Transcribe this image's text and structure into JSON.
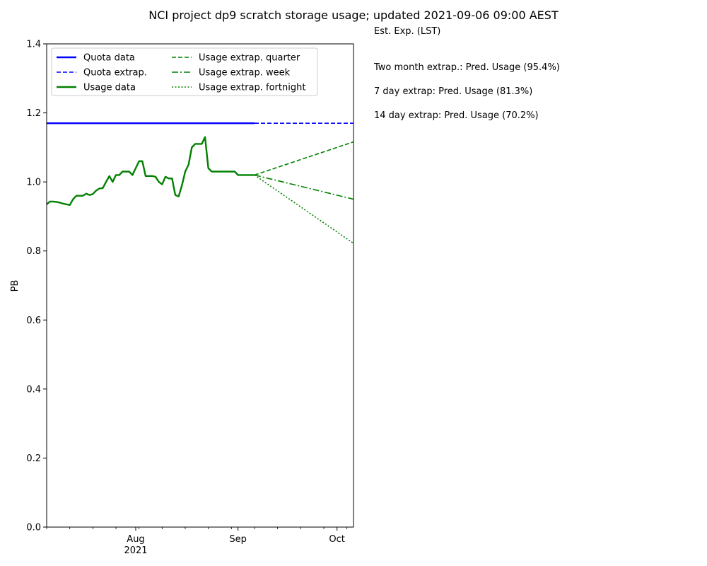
{
  "chart_data": {
    "type": "line",
    "title": "NCI project dp9 scratch storage usage; updated 2021-09-06 09:00 AEST",
    "xlabel": "",
    "ylabel": "PB",
    "xlim": [
      "2021-07-05",
      "2021-10-06"
    ],
    "ylim": [
      0.0,
      1.4
    ],
    "yticks": [
      0.0,
      0.2,
      0.4,
      0.6,
      0.8,
      1.0,
      1.2,
      1.4
    ],
    "ytick_labels": [
      "0.0",
      "0.2",
      "0.4",
      "0.6",
      "0.8",
      "1.0",
      "1.2",
      "1.4"
    ],
    "xticks_major": [
      {
        "date": "2021-08-01",
        "label": "Aug",
        "sublabel": "2021"
      },
      {
        "date": "2021-09-01",
        "label": "Sep",
        "sublabel": ""
      },
      {
        "date": "2021-10-01",
        "label": "Oct",
        "sublabel": ""
      }
    ],
    "xticks_minor": [
      "2021-07-05",
      "2021-07-12",
      "2021-07-19",
      "2021-07-26",
      "2021-08-02",
      "2021-08-09",
      "2021-08-16",
      "2021-08-23",
      "2021-08-30",
      "2021-09-06",
      "2021-09-13",
      "2021-09-20",
      "2021-09-27",
      "2021-10-04"
    ],
    "grid": false,
    "legend_position": "top-left",
    "legend_columns": 2,
    "series": [
      {
        "name": "Quota data",
        "color": "#0000ff",
        "style": "solid",
        "width": 2.4,
        "x": [
          "2021-07-05",
          "2021-09-06"
        ],
        "y": [
          1.17,
          1.17
        ]
      },
      {
        "name": "Quota extrap.",
        "color": "#0000ff",
        "style": "dashed",
        "width": 1.6,
        "x": [
          "2021-09-06",
          "2021-10-06"
        ],
        "y": [
          1.17,
          1.17
        ]
      },
      {
        "name": "Usage data",
        "color": "#008000",
        "style": "solid",
        "width": 2.4,
        "x": [
          "2021-07-05",
          "2021-07-06",
          "2021-07-07",
          "2021-07-08",
          "2021-07-09",
          "2021-07-10",
          "2021-07-11",
          "2021-07-12",
          "2021-07-13",
          "2021-07-14",
          "2021-07-15",
          "2021-07-16",
          "2021-07-17",
          "2021-07-18",
          "2021-07-19",
          "2021-07-20",
          "2021-07-21",
          "2021-07-22",
          "2021-07-23",
          "2021-07-24",
          "2021-07-25",
          "2021-07-26",
          "2021-07-27",
          "2021-07-28",
          "2021-07-29",
          "2021-07-30",
          "2021-07-31",
          "2021-08-01",
          "2021-08-02",
          "2021-08-03",
          "2021-08-04",
          "2021-08-05",
          "2021-08-06",
          "2021-08-07",
          "2021-08-08",
          "2021-08-09",
          "2021-08-10",
          "2021-08-11",
          "2021-08-12",
          "2021-08-13",
          "2021-08-14",
          "2021-08-15",
          "2021-08-16",
          "2021-08-17",
          "2021-08-18",
          "2021-08-19",
          "2021-08-20",
          "2021-08-21",
          "2021-08-22",
          "2021-08-23",
          "2021-08-24",
          "2021-08-25",
          "2021-08-26",
          "2021-08-27",
          "2021-08-28",
          "2021-08-29",
          "2021-08-30",
          "2021-08-31",
          "2021-09-01",
          "2021-09-02",
          "2021-09-03",
          "2021-09-04",
          "2021-09-05",
          "2021-09-06"
        ],
        "y": [
          0.935,
          0.943,
          0.943,
          0.942,
          0.94,
          0.937,
          0.935,
          0.933,
          0.95,
          0.96,
          0.96,
          0.96,
          0.966,
          0.962,
          0.965,
          0.975,
          0.981,
          0.982,
          1.0,
          1.017,
          1.0,
          1.02,
          1.02,
          1.03,
          1.03,
          1.03,
          1.02,
          1.04,
          1.06,
          1.06,
          1.017,
          1.017,
          1.017,
          1.015,
          1.0,
          0.993,
          1.015,
          1.01,
          1.01,
          0.962,
          0.958,
          0.99,
          1.03,
          1.05,
          1.1,
          1.11,
          1.11,
          1.11,
          1.13,
          1.04,
          1.03,
          1.03,
          1.03,
          1.03,
          1.03,
          1.03,
          1.03,
          1.03,
          1.02,
          1.02,
          1.02,
          1.02,
          1.02,
          1.02
        ]
      },
      {
        "name": "Usage extrap. quarter",
        "color": "#008000",
        "style": "dashed",
        "width": 1.6,
        "x": [
          "2021-09-06",
          "2021-10-06"
        ],
        "y": [
          1.02,
          1.116
        ]
      },
      {
        "name": "Usage extrap. week",
        "color": "#008000",
        "style": "dashdot",
        "width": 1.6,
        "x": [
          "2021-09-06",
          "2021-10-06"
        ],
        "y": [
          1.02,
          0.95
        ]
      },
      {
        "name": "Usage extrap. fortnight",
        "color": "#008000",
        "style": "dotted",
        "width": 1.6,
        "x": [
          "2021-09-06",
          "2021-10-06"
        ],
        "y": [
          1.02,
          0.822
        ]
      }
    ]
  },
  "side_panel": {
    "header": "Est. Exp. (LST)",
    "lines": [
      "Two month extrap.: Pred. Usage (95.4%)",
      "7 day extrap: Pred. Usage (81.3%)",
      "14 day extrap: Pred. Usage (70.2%)"
    ]
  }
}
